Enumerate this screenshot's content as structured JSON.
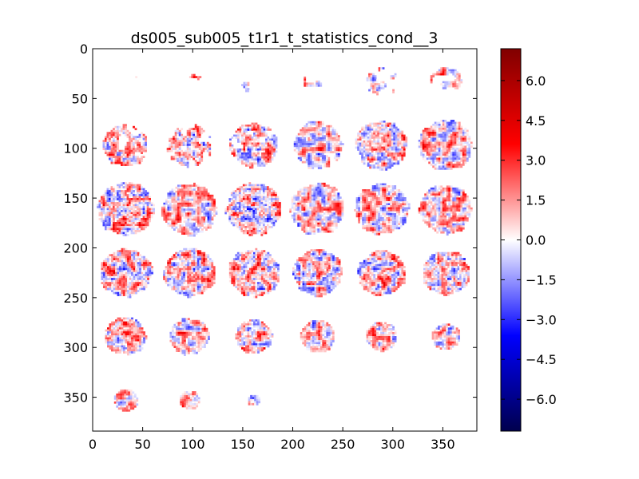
{
  "chart_data": {
    "type": "heatmap",
    "title": "ds005_sub005_t1r1_t_statistics_cond__3",
    "xlabel": "",
    "ylabel": "",
    "xlim": [
      0,
      384
    ],
    "ylim": [
      384,
      0
    ],
    "x_ticks": [
      0,
      50,
      100,
      150,
      200,
      250,
      300,
      350
    ],
    "y_ticks": [
      0,
      50,
      100,
      150,
      200,
      250,
      300,
      350
    ],
    "grid": false,
    "colormap": "seismic",
    "colorbar": {
      "vmin": -7.2,
      "vmax": 7.2,
      "ticks": [
        6.0,
        4.5,
        3.0,
        1.5,
        0.0,
        -1.5,
        -3.0,
        -4.5,
        -6.0
      ],
      "tick_labels": [
        "6.0",
        "4.5",
        "3.0",
        "1.5",
        "0.0",
        "−1.5",
        "−3.0",
        "−4.5",
        "−6.0"
      ],
      "colors": [
        "#00004d",
        "#0000ff",
        "#ffffff",
        "#ff0000",
        "#800000"
      ]
    },
    "mosaic": {
      "columns": 6,
      "rows": 6,
      "tile_size": 64,
      "slices": [
        {
          "row": 0,
          "col": 0,
          "radius": 0.45,
          "coverage": 0.12
        },
        {
          "row": 0,
          "col": 1,
          "radius": 0.45,
          "coverage": 0.1
        },
        {
          "row": 0,
          "col": 2,
          "radius": 0.45,
          "coverage": 0.12
        },
        {
          "row": 0,
          "col": 3,
          "radius": 0.5,
          "coverage": 0.2
        },
        {
          "row": 0,
          "col": 4,
          "radius": 0.55,
          "coverage": 0.4
        },
        {
          "row": 0,
          "col": 5,
          "radius": 0.55,
          "coverage": 0.55
        },
        {
          "row": 1,
          "col": 0,
          "radius": 0.8,
          "coverage": 0.7
        },
        {
          "row": 1,
          "col": 1,
          "radius": 0.8,
          "coverage": 0.72
        },
        {
          "row": 1,
          "col": 2,
          "radius": 0.85,
          "coverage": 0.85
        },
        {
          "row": 1,
          "col": 3,
          "radius": 0.9,
          "coverage": 0.9
        },
        {
          "row": 1,
          "col": 4,
          "radius": 0.92,
          "coverage": 0.95
        },
        {
          "row": 1,
          "col": 5,
          "radius": 0.95,
          "coverage": 0.97
        },
        {
          "row": 2,
          "col": 0,
          "radius": 1.0,
          "coverage": 1.0
        },
        {
          "row": 2,
          "col": 1,
          "radius": 0.98,
          "coverage": 1.0
        },
        {
          "row": 2,
          "col": 2,
          "radius": 1.0,
          "coverage": 1.0
        },
        {
          "row": 2,
          "col": 3,
          "radius": 0.98,
          "coverage": 1.0
        },
        {
          "row": 2,
          "col": 4,
          "radius": 0.96,
          "coverage": 1.0
        },
        {
          "row": 2,
          "col": 5,
          "radius": 0.95,
          "coverage": 1.0
        },
        {
          "row": 3,
          "col": 0,
          "radius": 0.92,
          "coverage": 1.0
        },
        {
          "row": 3,
          "col": 1,
          "radius": 0.92,
          "coverage": 1.0
        },
        {
          "row": 3,
          "col": 2,
          "radius": 0.92,
          "coverage": 1.0
        },
        {
          "row": 3,
          "col": 3,
          "radius": 0.88,
          "coverage": 1.0
        },
        {
          "row": 3,
          "col": 4,
          "radius": 0.85,
          "coverage": 1.0
        },
        {
          "row": 3,
          "col": 5,
          "radius": 0.85,
          "coverage": 1.0
        },
        {
          "row": 4,
          "col": 0,
          "radius": 0.72,
          "coverage": 1.0
        },
        {
          "row": 4,
          "col": 1,
          "radius": 0.7,
          "coverage": 1.0
        },
        {
          "row": 4,
          "col": 2,
          "radius": 0.65,
          "coverage": 1.0
        },
        {
          "row": 4,
          "col": 3,
          "radius": 0.62,
          "coverage": 1.0
        },
        {
          "row": 4,
          "col": 4,
          "radius": 0.55,
          "coverage": 1.0
        },
        {
          "row": 4,
          "col": 5,
          "radius": 0.5,
          "coverage": 1.0
        },
        {
          "row": 5,
          "col": 0,
          "radius": 0.42,
          "coverage": 1.0
        },
        {
          "row": 5,
          "col": 1,
          "radius": 0.36,
          "coverage": 1.0
        },
        {
          "row": 5,
          "col": 2,
          "radius": 0.22,
          "coverage": 0.9
        }
      ]
    }
  }
}
